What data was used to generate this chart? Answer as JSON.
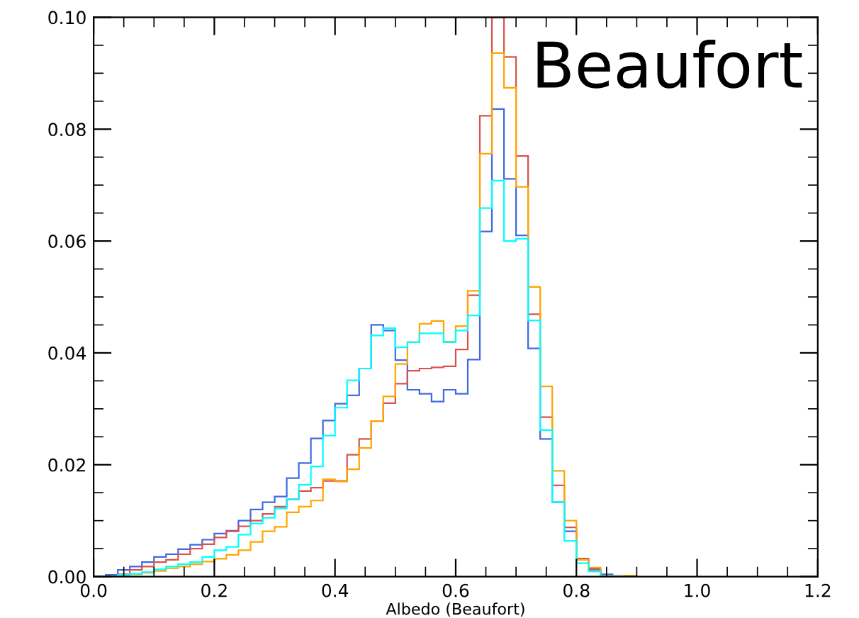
{
  "chart_data": {
    "type": "histogram",
    "xlabel": "Albedo (Beaufort)",
    "annotations": [
      "Beaufort"
    ],
    "bins": [
      0.0,
      0.02,
      0.04,
      0.06,
      0.08,
      0.1,
      0.12,
      0.14,
      0.16,
      0.18,
      0.2,
      0.22,
      0.24,
      0.26,
      0.28,
      0.3,
      0.32,
      0.34,
      0.36,
      0.38,
      0.4,
      0.42,
      0.44,
      0.46,
      0.48,
      0.5,
      0.52,
      0.54,
      0.56,
      0.58,
      0.6,
      0.62,
      0.64,
      0.66,
      0.68,
      0.7,
      0.72,
      0.74,
      0.76,
      0.78,
      0.8,
      0.82,
      0.84,
      0.86,
      0.88,
      0.9
    ],
    "series": [
      {
        "color": "#4169e1",
        "values": [
          0,
          0.0003,
          0.0012,
          0.0018,
          0.0026,
          0.0035,
          0.004,
          0.0049,
          0.0057,
          0.0066,
          0.0077,
          0.0082,
          0.01,
          0.012,
          0.0133,
          0.0143,
          0.0176,
          0.0203,
          0.0247,
          0.0279,
          0.0309,
          0.0324,
          0.0372,
          0.045,
          0.044,
          0.0387,
          0.0334,
          0.0327,
          0.0313,
          0.0334,
          0.0327,
          0.0388,
          0.0617,
          0.0836,
          0.0711,
          0.061,
          0.0408,
          0.0246,
          0.0133,
          0.0081,
          0.0032,
          0.0014,
          0.0004,
          0.0001,
          0
        ]
      },
      {
        "color": "#d9534f",
        "values": [
          0,
          0.0001,
          0.0004,
          0.0012,
          0.0018,
          0.0026,
          0.003,
          0.004,
          0.005,
          0.0058,
          0.007,
          0.0081,
          0.009,
          0.01,
          0.0112,
          0.0125,
          0.0138,
          0.0153,
          0.0159,
          0.0171,
          0.0171,
          0.0218,
          0.0246,
          0.0278,
          0.031,
          0.0345,
          0.0368,
          0.0372,
          0.0374,
          0.0376,
          0.0406,
          0.0503,
          0.0824,
          0.1,
          0.0929,
          0.0752,
          0.0469,
          0.0285,
          0.0163,
          0.0088,
          0.0032,
          0.0012,
          0.0001,
          0,
          0
        ]
      },
      {
        "color": "#ffa500",
        "values": [
          0,
          0,
          0.0002,
          0.0004,
          0.0007,
          0.001,
          0.0015,
          0.0018,
          0.0022,
          0.0027,
          0.0032,
          0.0039,
          0.0047,
          0.0062,
          0.0081,
          0.0089,
          0.0115,
          0.0125,
          0.0136,
          0.0174,
          0.017,
          0.0192,
          0.023,
          0.0278,
          0.0322,
          0.038,
          0.0419,
          0.0452,
          0.0457,
          0.042,
          0.0448,
          0.0511,
          0.0756,
          0.0936,
          0.0874,
          0.0697,
          0.0518,
          0.034,
          0.0189,
          0.01,
          0.003,
          0.0016,
          0.0002,
          0.0001,
          0.0002
        ]
      },
      {
        "color": "#00ffff",
        "values": [
          0,
          0,
          0.0003,
          0.0005,
          0.0008,
          0.0013,
          0.0018,
          0.0022,
          0.0026,
          0.0035,
          0.0047,
          0.0053,
          0.0075,
          0.0095,
          0.0105,
          0.0122,
          0.0138,
          0.0164,
          0.0197,
          0.0252,
          0.0302,
          0.0351,
          0.0372,
          0.0431,
          0.0444,
          0.041,
          0.0419,
          0.0435,
          0.0435,
          0.0419,
          0.044,
          0.0467,
          0.0659,
          0.0708,
          0.06,
          0.0604,
          0.0458,
          0.0262,
          0.0133,
          0.0064,
          0.0024,
          0.0009,
          0.0001,
          0,
          0
        ]
      }
    ],
    "xlim": [
      0.0,
      1.2
    ],
    "xticks": [
      {
        "value": 0.0,
        "label": "0.0"
      },
      {
        "value": 0.2,
        "label": "0.2"
      },
      {
        "value": 0.4,
        "label": "0.4"
      },
      {
        "value": 0.6,
        "label": "0.6"
      },
      {
        "value": 0.8,
        "label": "0.8"
      },
      {
        "value": 1.0,
        "label": "1.0"
      },
      {
        "value": 1.2,
        "label": "1.2"
      }
    ],
    "ylim": [
      0.0,
      0.1
    ],
    "yticks": [
      {
        "value": 0.0,
        "label": "0.00"
      },
      {
        "value": 0.02,
        "label": "0.02"
      },
      {
        "value": 0.04,
        "label": "0.04"
      },
      {
        "value": 0.06,
        "label": "0.06"
      },
      {
        "value": 0.08,
        "label": "0.08"
      },
      {
        "value": 0.1,
        "label": "0.10"
      }
    ],
    "grid": false
  }
}
